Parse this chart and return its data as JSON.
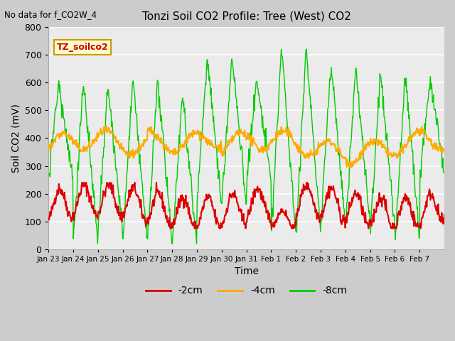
{
  "title": "Tonzi Soil CO2 Profile: Tree (West) CO2",
  "top_left_text": "No data for f_CO2W_4",
  "box_label": "TZ_soilco2",
  "xlabel": "Time",
  "ylabel": "Soil CO2 (mV)",
  "ylim": [
    0,
    800
  ],
  "yticks": [
    0,
    100,
    200,
    300,
    400,
    500,
    600,
    700,
    800
  ],
  "xtick_labels": [
    "Jan 23",
    "Jan 24",
    "Jan 25",
    "Jan 26",
    "Jan 27",
    "Jan 28",
    "Jan 29",
    "Jan 30",
    "Jan 31",
    "Feb 1",
    "Feb 2",
    "Feb 3",
    "Feb 4",
    "Feb 5",
    "Feb 6",
    "Feb 7"
  ],
  "legend_entries": [
    "-2cm",
    "-4cm",
    "-8cm"
  ],
  "legend_colors": [
    "#dd0000",
    "#ffaa00",
    "#00cc00"
  ],
  "plot_bg_color": "#ebebeb",
  "line_colors": {
    "2cm": "#dd0000",
    "4cm": "#ffaa00",
    "8cm": "#00cc00"
  }
}
